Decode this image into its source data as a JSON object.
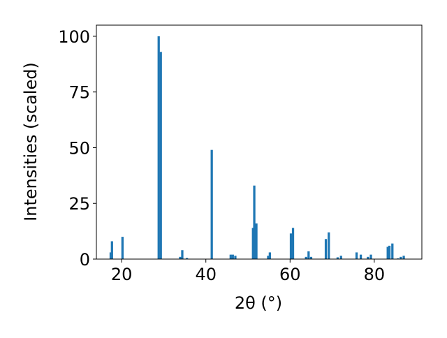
{
  "chart_data": {
    "type": "bar",
    "xlabel": "2θ (°)",
    "ylabel": "Intensities (scaled)",
    "color": "#1f77b4",
    "x": [
      17.4,
      17.7,
      20.2,
      28.8,
      29.3,
      33.9,
      34.4,
      35.5,
      41.4,
      45.9,
      46.4,
      47.0,
      51.2,
      51.5,
      52.0,
      54.8,
      55.2,
      60.2,
      60.7,
      63.8,
      64.4,
      65.0,
      68.5,
      69.2,
      71.3,
      72.1,
      75.8,
      76.8,
      78.5,
      79.2,
      83.2,
      83.6,
      84.3,
      85.6,
      86.3,
      87.0
    ],
    "values": [
      3,
      8,
      10,
      100,
      93,
      1,
      4,
      0.5,
      49,
      2,
      2,
      1.5,
      14,
      33,
      16,
      1.5,
      3,
      11.5,
      14,
      1,
      3.5,
      1,
      9,
      12,
      0.8,
      1.5,
      3,
      2,
      1,
      2,
      5.5,
      6,
      7,
      0.3,
      1,
      1.5
    ],
    "xlim": [
      14.0,
      91.3
    ],
    "ylim": [
      0,
      105
    ],
    "xticks": [
      20,
      40,
      60,
      80
    ],
    "yticks": [
      0,
      25,
      50,
      75,
      100
    ],
    "grid": false
  }
}
